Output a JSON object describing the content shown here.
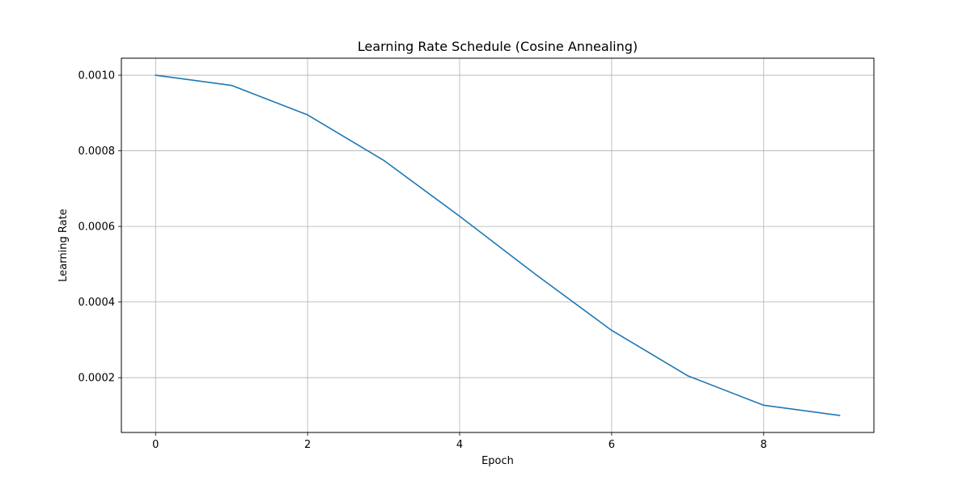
{
  "chart_data": {
    "type": "line",
    "title": "Learning Rate Schedule (Cosine Annealing)",
    "xlabel": "Epoch",
    "ylabel": "Learning Rate",
    "xlim": [
      -0.45,
      9.45
    ],
    "ylim": [
      5.5e-05,
      0.001045
    ],
    "xticks": [
      0,
      2,
      4,
      6,
      8
    ],
    "xtick_labels": [
      "0",
      "2",
      "4",
      "6",
      "8"
    ],
    "yticks": [
      0.0002,
      0.0004,
      0.0006,
      0.0008,
      0.001
    ],
    "ytick_labels": [
      "0.0002",
      "0.0004",
      "0.0006",
      "0.0008",
      "0.0010"
    ],
    "grid": true,
    "series": [
      {
        "color": "#1f77b4",
        "x": [
          0,
          1,
          2,
          3,
          4,
          5,
          6,
          7,
          8,
          9
        ],
        "y": [
          0.001,
          0.000973,
          0.000895,
          0.000775,
          0.000627,
          0.000473,
          0.000325,
          0.000205,
          0.000127,
          0.0001
        ]
      }
    ]
  }
}
